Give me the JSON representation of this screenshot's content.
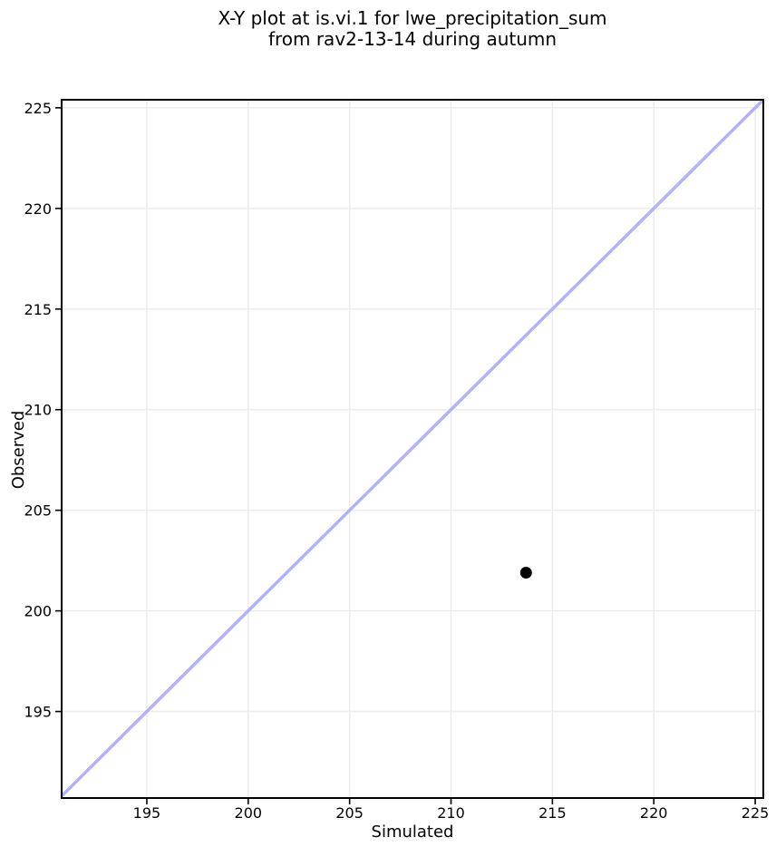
{
  "chart_data": {
    "type": "scatter",
    "title_lines": [
      "X-Y plot at is.vi.1 for lwe_precipitation_sum",
      "from rav2-13-14 during autumn"
    ],
    "title": "X-Y plot at is.vi.1 for lwe_precipitation_sum\nfrom rav2-13-14 during autumn",
    "xlabel": "Simulated",
    "ylabel": "Observed",
    "xlim": [
      190.8,
      225.4
    ],
    "ylim": [
      190.7,
      225.4
    ],
    "xticks": [
      195,
      200,
      205,
      210,
      215,
      220,
      225
    ],
    "yticks": [
      195,
      200,
      205,
      210,
      215,
      220,
      225
    ],
    "grid": true,
    "legend": false,
    "points": [
      {
        "simulated": 213.7,
        "observed": 201.9
      }
    ],
    "identity_line": {
      "from": 190.7,
      "to": 225.4
    },
    "style": {
      "identity_line_color": "#b2b2f7",
      "identity_line_width": 3.5,
      "point_color": "#000000",
      "point_radius": 6.5,
      "grid_color": "#ededed",
      "grid_width": 1.6,
      "spine_color": "#000000",
      "spine_width": 2,
      "tick_color": "#000000",
      "text_color": "#000000",
      "background": "#ffffff"
    }
  }
}
